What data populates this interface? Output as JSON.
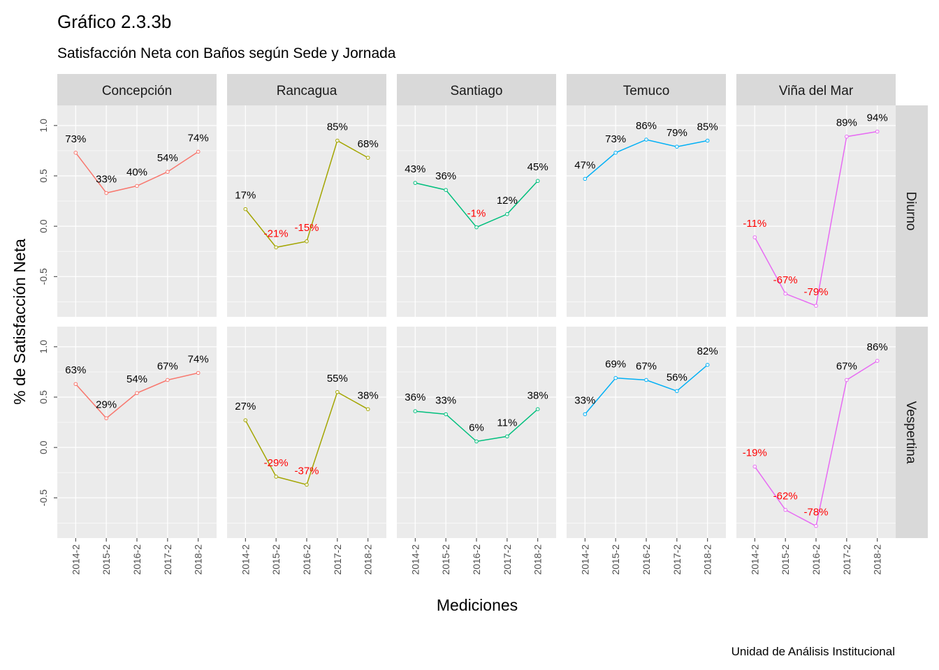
{
  "title": "Gráfico 2.3.3b",
  "subtitle": "Satisfacción Neta con Baños según Sede y Jornada",
  "caption": "Unidad de Análisis Institucional",
  "colors": {
    "panel_bg": "#ebebeb",
    "strip_bg": "#d9d9d9",
    "grid": "#ffffff",
    "negative_label": "#ff0000",
    "positive_label": "#000000"
  },
  "chart_data": {
    "type": "line",
    "xlabel": "Mediciones",
    "ylabel": "% de Satisfacción Neta",
    "x": [
      "2014-2",
      "2015-2",
      "2016-2",
      "2017-2",
      "2018-2"
    ],
    "y_ticks": [
      "-0.5",
      "0.0",
      "0.5",
      "1.0"
    ],
    "ylim": [
      -0.9,
      1.2
    ],
    "grid": true,
    "columns": [
      "Concepción",
      "Rancagua",
      "Santiago",
      "Temuco",
      "Viña del Mar"
    ],
    "rows": [
      "Diurno",
      "Vespertina"
    ],
    "column_colors": [
      "#f8766d",
      "#a3a500",
      "#00bf7d",
      "#00b0f6",
      "#e76bf3"
    ],
    "series": [
      {
        "sede": "Concepción",
        "jornada": "Diurno",
        "values": [
          0.73,
          0.33,
          0.4,
          0.54,
          0.74
        ],
        "labels": [
          "73%",
          "33%",
          "40%",
          "54%",
          "74%"
        ]
      },
      {
        "sede": "Rancagua",
        "jornada": "Diurno",
        "values": [
          0.17,
          -0.21,
          -0.15,
          0.85,
          0.68
        ],
        "labels": [
          "17%",
          "-21%",
          "-15%",
          "85%",
          "68%"
        ]
      },
      {
        "sede": "Santiago",
        "jornada": "Diurno",
        "values": [
          0.43,
          0.36,
          -0.01,
          0.12,
          0.45
        ],
        "labels": [
          "43%",
          "36%",
          "-1%",
          "12%",
          "45%"
        ]
      },
      {
        "sede": "Temuco",
        "jornada": "Diurno",
        "values": [
          0.47,
          0.73,
          0.86,
          0.79,
          0.85
        ],
        "labels": [
          "47%",
          "73%",
          "86%",
          "79%",
          "85%"
        ]
      },
      {
        "sede": "Viña del Mar",
        "jornada": "Diurno",
        "values": [
          -0.11,
          -0.67,
          -0.79,
          0.89,
          0.94
        ],
        "labels": [
          "-11%",
          "-67%",
          "-79%",
          "89%",
          "94%"
        ]
      },
      {
        "sede": "Concepción",
        "jornada": "Vespertina",
        "values": [
          0.63,
          0.29,
          0.54,
          0.67,
          0.74
        ],
        "labels": [
          "63%",
          "29%",
          "54%",
          "67%",
          "74%"
        ]
      },
      {
        "sede": "Rancagua",
        "jornada": "Vespertina",
        "values": [
          0.27,
          -0.29,
          -0.37,
          0.55,
          0.38
        ],
        "labels": [
          "27%",
          "-29%",
          "-37%",
          "55%",
          "38%"
        ]
      },
      {
        "sede": "Santiago",
        "jornada": "Vespertina",
        "values": [
          0.36,
          0.33,
          0.06,
          0.11,
          0.38
        ],
        "labels": [
          "36%",
          "33%",
          "6%",
          "11%",
          "38%"
        ]
      },
      {
        "sede": "Temuco",
        "jornada": "Vespertina",
        "values": [
          0.33,
          0.69,
          0.67,
          0.56,
          0.82
        ],
        "labels": [
          "33%",
          "69%",
          "67%",
          "56%",
          "82%"
        ]
      },
      {
        "sede": "Viña del Mar",
        "jornada": "Vespertina",
        "values": [
          -0.19,
          -0.62,
          -0.78,
          0.67,
          0.86
        ],
        "labels": [
          "-19%",
          "-62%",
          "-78%",
          "67%",
          "86%"
        ]
      }
    ]
  }
}
